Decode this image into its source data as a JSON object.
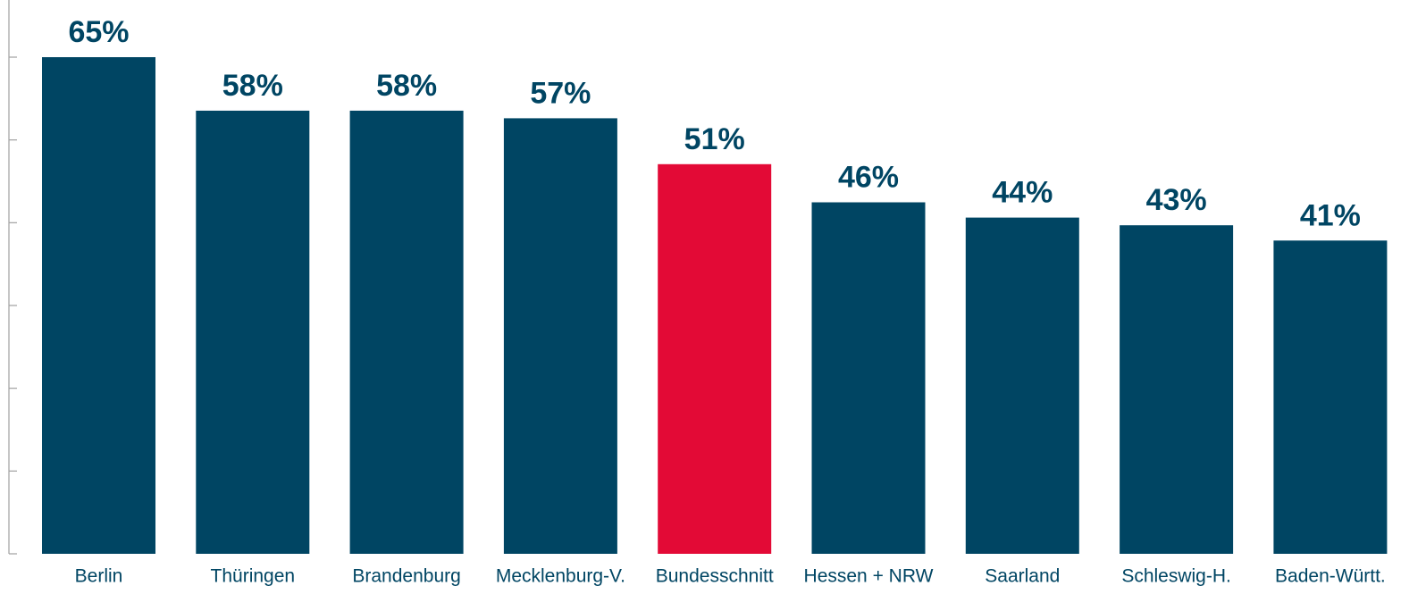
{
  "colors": {
    "bar": "#004563",
    "highlight": "#E30A36",
    "label": "#004563",
    "category_text": "#004563",
    "axis": "#a0a0a0"
  },
  "chart_data": {
    "type": "bar",
    "title": "",
    "xlabel": "",
    "ylabel": "",
    "ylim": [
      0,
      65
    ],
    "y_tick_count": 6,
    "grid": false,
    "categories": [
      "Berlin",
      "Thüringen",
      "Brandenburg",
      "Mecklenburg-V.",
      "Bundesschnitt",
      "Hessen + NRW",
      "Saarland",
      "Schleswig-H.",
      "Baden-Württ."
    ],
    "values": [
      65,
      58,
      58,
      57,
      51,
      46,
      44,
      43,
      41
    ],
    "value_labels": [
      "65%",
      "58%",
      "58%",
      "57%",
      "51%",
      "46%",
      "44%",
      "43%",
      "41%"
    ],
    "highlight": "Bundesschnitt"
  }
}
